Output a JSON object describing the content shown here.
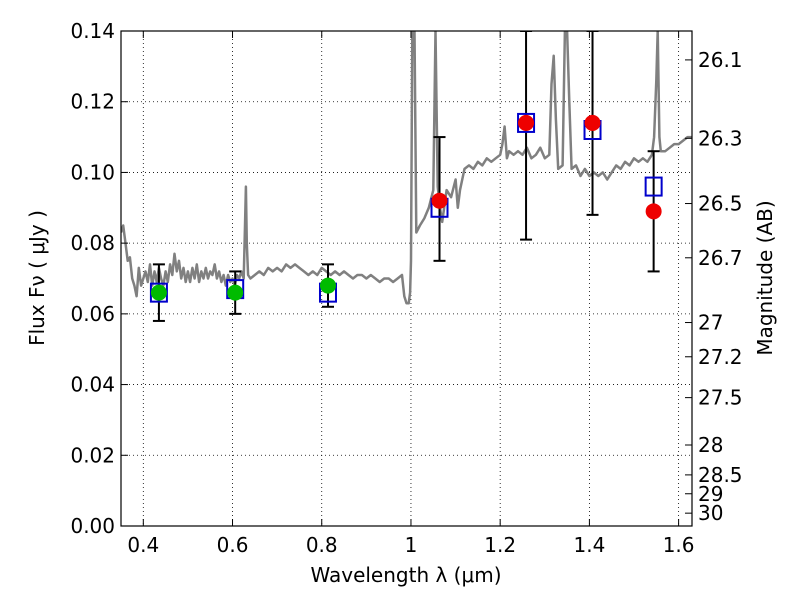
{
  "chart_data": {
    "type": "scatter",
    "xlabel": "Wavelength  λ (μm)",
    "ylabel": "Flux  Fν ( μJy )",
    "ylabel_right": "Magnitude (AB)",
    "xlim": [
      0.35,
      1.63
    ],
    "ylim": [
      0.0,
      0.14
    ],
    "grid": true,
    "x_ticks": [
      {
        "value": 0.4,
        "label": "0.4"
      },
      {
        "value": 0.6,
        "label": "0.6"
      },
      {
        "value": 0.8,
        "label": "0.8"
      },
      {
        "value": 1.0,
        "label": "1"
      },
      {
        "value": 1.2,
        "label": "1.2"
      },
      {
        "value": 1.4,
        "label": "1.4"
      },
      {
        "value": 1.6,
        "label": "1.6"
      }
    ],
    "y_ticks": [
      {
        "value": 0.0,
        "label": "0.00"
      },
      {
        "value": 0.02,
        "label": "0.02"
      },
      {
        "value": 0.04,
        "label": "0.04"
      },
      {
        "value": 0.06,
        "label": "0.06"
      },
      {
        "value": 0.08,
        "label": "0.08"
      },
      {
        "value": 0.1,
        "label": "0.10"
      },
      {
        "value": 0.12,
        "label": "0.12"
      },
      {
        "value": 0.14,
        "label": "0.14"
      }
    ],
    "right_ticks": [
      {
        "mag": 26.1,
        "label": "26.1"
      },
      {
        "mag": 26.3,
        "label": "26.3"
      },
      {
        "mag": 26.5,
        "label": "26.5"
      },
      {
        "mag": 26.7,
        "label": "26.7"
      },
      {
        "mag": 27.0,
        "label": "27"
      },
      {
        "mag": 27.2,
        "label": "27.2"
      },
      {
        "mag": 27.5,
        "label": "27.5"
      },
      {
        "mag": 28.0,
        "label": "28"
      },
      {
        "mag": 28.5,
        "label": "28.5"
      },
      {
        "mag": 29.0,
        "label": "29"
      },
      {
        "mag": 30.0,
        "label": "30"
      }
    ],
    "model_spectrum": {
      "color": "#808080",
      "points": [
        [
          0.35,
          0.083
        ],
        [
          0.355,
          0.085
        ],
        [
          0.36,
          0.08
        ],
        [
          0.365,
          0.075
        ],
        [
          0.37,
          0.076
        ],
        [
          0.375,
          0.07
        ],
        [
          0.38,
          0.068
        ],
        [
          0.385,
          0.065
        ],
        [
          0.39,
          0.073
        ],
        [
          0.395,
          0.068
        ],
        [
          0.4,
          0.07
        ],
        [
          0.405,
          0.072
        ],
        [
          0.41,
          0.069
        ],
        [
          0.415,
          0.074
        ],
        [
          0.42,
          0.068
        ],
        [
          0.425,
          0.072
        ],
        [
          0.43,
          0.069
        ],
        [
          0.435,
          0.073
        ],
        [
          0.44,
          0.07
        ],
        [
          0.445,
          0.068
        ],
        [
          0.45,
          0.072
        ],
        [
          0.455,
          0.069
        ],
        [
          0.46,
          0.074
        ],
        [
          0.465,
          0.071
        ],
        [
          0.47,
          0.077
        ],
        [
          0.475,
          0.072
        ],
        [
          0.48,
          0.075
        ],
        [
          0.485,
          0.07
        ],
        [
          0.49,
          0.073
        ],
        [
          0.495,
          0.069
        ],
        [
          0.5,
          0.072
        ],
        [
          0.505,
          0.069
        ],
        [
          0.51,
          0.073
        ],
        [
          0.515,
          0.07
        ],
        [
          0.52,
          0.074
        ],
        [
          0.525,
          0.069
        ],
        [
          0.53,
          0.072
        ],
        [
          0.535,
          0.07
        ],
        [
          0.54,
          0.073
        ],
        [
          0.545,
          0.07
        ],
        [
          0.55,
          0.072
        ],
        [
          0.555,
          0.071
        ],
        [
          0.56,
          0.074
        ],
        [
          0.565,
          0.07
        ],
        [
          0.57,
          0.072
        ],
        [
          0.575,
          0.069
        ],
        [
          0.58,
          0.071
        ],
        [
          0.585,
          0.068
        ],
        [
          0.59,
          0.071
        ],
        [
          0.595,
          0.069
        ],
        [
          0.6,
          0.07
        ],
        [
          0.605,
          0.068
        ],
        [
          0.61,
          0.071
        ],
        [
          0.615,
          0.07
        ],
        [
          0.62,
          0.072
        ],
        [
          0.625,
          0.07
        ],
        [
          0.628,
          0.085
        ],
        [
          0.63,
          0.096
        ],
        [
          0.632,
          0.08
        ],
        [
          0.635,
          0.071
        ],
        [
          0.64,
          0.07
        ],
        [
          0.65,
          0.071
        ],
        [
          0.66,
          0.072
        ],
        [
          0.67,
          0.071
        ],
        [
          0.68,
          0.073
        ],
        [
          0.69,
          0.072
        ],
        [
          0.7,
          0.073
        ],
        [
          0.71,
          0.072
        ],
        [
          0.72,
          0.074
        ],
        [
          0.73,
          0.073
        ],
        [
          0.74,
          0.074
        ],
        [
          0.75,
          0.073
        ],
        [
          0.76,
          0.072
        ],
        [
          0.77,
          0.071
        ],
        [
          0.78,
          0.072
        ],
        [
          0.79,
          0.071
        ],
        [
          0.8,
          0.073
        ],
        [
          0.81,
          0.072
        ],
        [
          0.82,
          0.071
        ],
        [
          0.83,
          0.072
        ],
        [
          0.84,
          0.071
        ],
        [
          0.85,
          0.072
        ],
        [
          0.86,
          0.071
        ],
        [
          0.87,
          0.07
        ],
        [
          0.88,
          0.071
        ],
        [
          0.89,
          0.071
        ],
        [
          0.9,
          0.07
        ],
        [
          0.91,
          0.071
        ],
        [
          0.92,
          0.07
        ],
        [
          0.93,
          0.069
        ],
        [
          0.94,
          0.07
        ],
        [
          0.95,
          0.07
        ],
        [
          0.96,
          0.069
        ],
        [
          0.97,
          0.07
        ],
        [
          0.98,
          0.071
        ],
        [
          0.985,
          0.065
        ],
        [
          0.99,
          0.063
        ],
        [
          0.995,
          0.063
        ],
        [
          0.998,
          0.066
        ],
        [
          1.0,
          0.075
        ],
        [
          1.003,
          0.14
        ],
        [
          1.008,
          0.14
        ],
        [
          1.012,
          0.083
        ],
        [
          1.02,
          0.085
        ],
        [
          1.03,
          0.087
        ],
        [
          1.04,
          0.09
        ],
        [
          1.05,
          0.095
        ],
        [
          1.055,
          0.14
        ],
        [
          1.06,
          0.096
        ],
        [
          1.065,
          0.09
        ],
        [
          1.07,
          0.086
        ],
        [
          1.08,
          0.095
        ],
        [
          1.09,
          0.093
        ],
        [
          1.1,
          0.098
        ],
        [
          1.105,
          0.09
        ],
        [
          1.11,
          0.095
        ],
        [
          1.12,
          0.101
        ],
        [
          1.13,
          0.102
        ],
        [
          1.14,
          0.101
        ],
        [
          1.15,
          0.103
        ],
        [
          1.16,
          0.102
        ],
        [
          1.17,
          0.104
        ],
        [
          1.18,
          0.103
        ],
        [
          1.19,
          0.104
        ],
        [
          1.2,
          0.105
        ],
        [
          1.205,
          0.108
        ],
        [
          1.21,
          0.113
        ],
        [
          1.215,
          0.104
        ],
        [
          1.22,
          0.106
        ],
        [
          1.23,
          0.105
        ],
        [
          1.24,
          0.106
        ],
        [
          1.25,
          0.105
        ],
        [
          1.26,
          0.107
        ],
        [
          1.27,
          0.104
        ],
        [
          1.28,
          0.105
        ],
        [
          1.29,
          0.107
        ],
        [
          1.3,
          0.104
        ],
        [
          1.31,
          0.105
        ],
        [
          1.315,
          0.125
        ],
        [
          1.32,
          0.133
        ],
        [
          1.325,
          0.115
        ],
        [
          1.33,
          0.101
        ],
        [
          1.34,
          0.102
        ],
        [
          1.345,
          0.14
        ],
        [
          1.35,
          0.14
        ],
        [
          1.355,
          0.12
        ],
        [
          1.36,
          0.101
        ],
        [
          1.37,
          0.102
        ],
        [
          1.38,
          0.099
        ],
        [
          1.39,
          0.101
        ],
        [
          1.4,
          0.099
        ],
        [
          1.41,
          0.1
        ],
        [
          1.42,
          0.099
        ],
        [
          1.43,
          0.1
        ],
        [
          1.44,
          0.098
        ],
        [
          1.45,
          0.1
        ],
        [
          1.46,
          0.102
        ],
        [
          1.47,
          0.101
        ],
        [
          1.48,
          0.103
        ],
        [
          1.49,
          0.102
        ],
        [
          1.5,
          0.104
        ],
        [
          1.51,
          0.103
        ],
        [
          1.52,
          0.104
        ],
        [
          1.53,
          0.103
        ],
        [
          1.54,
          0.105
        ],
        [
          1.545,
          0.11
        ],
        [
          1.55,
          0.126
        ],
        [
          1.553,
          0.14
        ],
        [
          1.557,
          0.11
        ],
        [
          1.56,
          0.106
        ],
        [
          1.57,
          0.106
        ],
        [
          1.58,
          0.107
        ],
        [
          1.59,
          0.108
        ],
        [
          1.6,
          0.108
        ],
        [
          1.61,
          0.109
        ],
        [
          1.62,
          0.11
        ],
        [
          1.63,
          0.11
        ]
      ]
    },
    "model_fluxes": {
      "marker": "open-square",
      "color": "#0000cc",
      "points": [
        {
          "x": 0.435,
          "y": 0.066
        },
        {
          "x": 0.606,
          "y": 0.067
        },
        {
          "x": 0.814,
          "y": 0.066
        },
        {
          "x": 1.064,
          "y": 0.09
        },
        {
          "x": 1.258,
          "y": 0.114
        },
        {
          "x": 1.407,
          "y": 0.112
        },
        {
          "x": 1.544,
          "y": 0.096
        }
      ]
    },
    "observed": [
      {
        "name": "green",
        "color": "#00bb00",
        "points": [
          {
            "x": 0.435,
            "y": 0.066,
            "err_low": 0.058,
            "err_high": 0.074
          },
          {
            "x": 0.606,
            "y": 0.066,
            "err_low": 0.06,
            "err_high": 0.072
          },
          {
            "x": 0.814,
            "y": 0.068,
            "err_low": 0.062,
            "err_high": 0.074
          }
        ]
      },
      {
        "name": "red",
        "color": "#ee0000",
        "points": [
          {
            "x": 1.064,
            "y": 0.092,
            "err_low": 0.075,
            "err_high": 0.11
          },
          {
            "x": 1.258,
            "y": 0.114,
            "err_low": 0.081,
            "err_high": 0.14
          },
          {
            "x": 1.407,
            "y": 0.114,
            "err_low": 0.088,
            "err_high": 0.14
          },
          {
            "x": 1.544,
            "y": 0.089,
            "err_low": 0.072,
            "err_high": 0.106
          }
        ]
      }
    ]
  }
}
